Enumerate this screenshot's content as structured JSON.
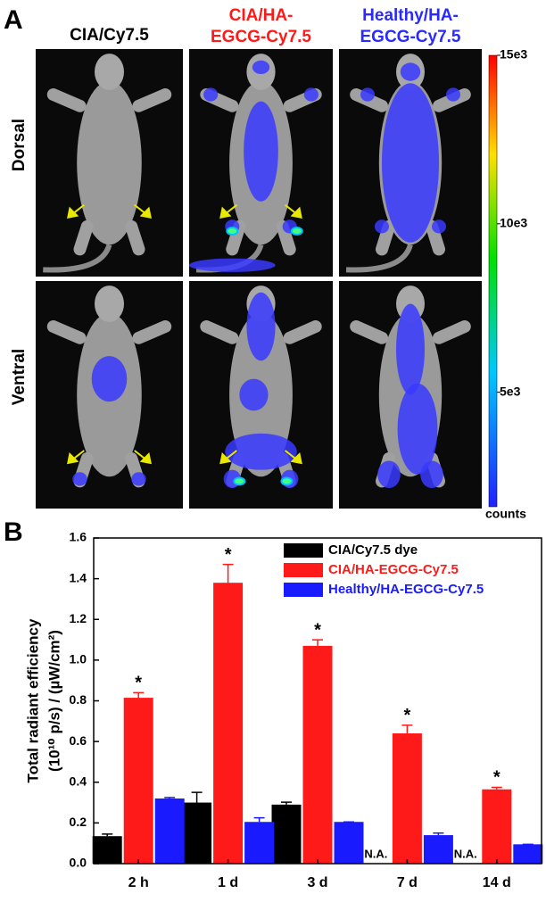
{
  "panel_a": {
    "label": "A",
    "columns": [
      {
        "lines": [
          "CIA/Cy7.5"
        ],
        "color": "#000000"
      },
      {
        "lines": [
          "CIA/HA-",
          "EGCG-Cy7.5"
        ],
        "color": "#ff1a1a"
      },
      {
        "lines": [
          "Healthy/HA-",
          "EGCG-Cy7.5"
        ],
        "color": "#2a2aff"
      }
    ],
    "rows": [
      "Dorsal",
      "Ventral"
    ],
    "colorbar": {
      "lim": [
        1600,
        15000
      ],
      "ticks": [
        {
          "value": 15000,
          "label": "15e3"
        },
        {
          "value": 10000,
          "label": "10e3"
        },
        {
          "value": 5000,
          "label": "5e3"
        }
      ],
      "unit": "counts"
    }
  },
  "chart_data": {
    "type": "bar",
    "panel_label": "B",
    "ylabel": [
      "Total radiant efficiency",
      "(10¹⁰ p/s) / (µW/cm²)"
    ],
    "categories": [
      "2 h",
      "1 d",
      "3 d",
      "7 d",
      "14 d"
    ],
    "series": [
      {
        "name": "CIA/Cy7.5 dye",
        "color": "#000000",
        "values": [
          0.135,
          0.3,
          0.29,
          null,
          null
        ],
        "errors": [
          0.01,
          0.05,
          0.012,
          null,
          null
        ],
        "value_labels": [
          null,
          null,
          null,
          "N.A.",
          "N.A."
        ]
      },
      {
        "name": "CIA/HA-EGCG-Cy7.5",
        "color": "#ff1a1a",
        "values": [
          0.815,
          1.38,
          1.07,
          0.64,
          0.365
        ],
        "errors": [
          0.025,
          0.09,
          0.03,
          0.04,
          0.01
        ],
        "significance": [
          "*",
          "*",
          "*",
          "*",
          "*"
        ]
      },
      {
        "name": "Healthy/HA-EGCG-Cy7.5",
        "color": "#1a1aff",
        "values": [
          0.32,
          0.205,
          0.205,
          0.14,
          0.095
        ],
        "errors": [
          0.005,
          0.02,
          0.0,
          0.01,
          0.0
        ]
      }
    ],
    "ylim": [
      0,
      1.6
    ],
    "yticks": [
      {
        "value": 0,
        "label": "0.0"
      },
      0.2,
      0.4,
      0.6,
      0.8,
      {
        "value": 1,
        "label": "1.0"
      },
      1.2,
      1.4,
      1.6
    ],
    "legend": "upper right"
  }
}
